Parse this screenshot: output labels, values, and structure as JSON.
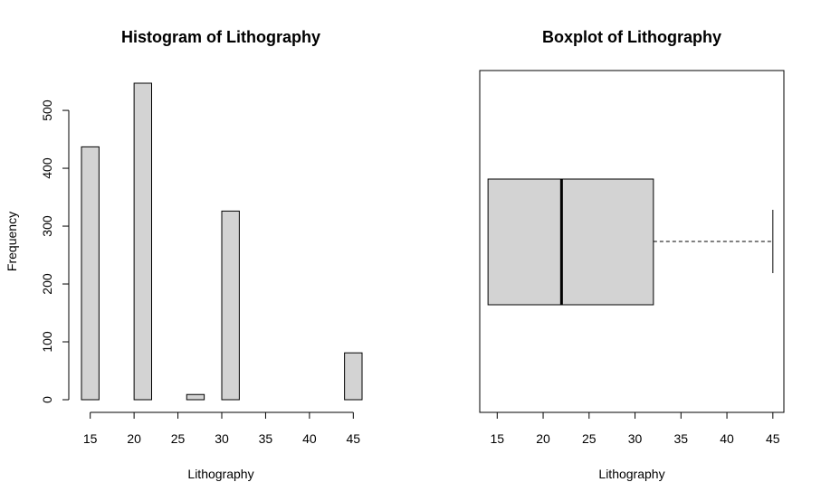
{
  "chart_data": [
    {
      "type": "histogram",
      "title": "Histogram of Lithography",
      "xlabel": "Lithography",
      "ylabel": "Frequency",
      "bins": [
        {
          "start": 14,
          "end": 16,
          "count": 437
        },
        {
          "start": 16,
          "end": 18,
          "count": 0
        },
        {
          "start": 18,
          "end": 20,
          "count": 0
        },
        {
          "start": 20,
          "end": 22,
          "count": 547
        },
        {
          "start": 22,
          "end": 24,
          "count": 0
        },
        {
          "start": 24,
          "end": 26,
          "count": 0
        },
        {
          "start": 26,
          "end": 28,
          "count": 9
        },
        {
          "start": 28,
          "end": 30,
          "count": 0
        },
        {
          "start": 30,
          "end": 32,
          "count": 326
        },
        {
          "start": 32,
          "end": 34,
          "count": 0
        },
        {
          "start": 34,
          "end": 36,
          "count": 0
        },
        {
          "start": 36,
          "end": 38,
          "count": 0
        },
        {
          "start": 38,
          "end": 40,
          "count": 0
        },
        {
          "start": 40,
          "end": 42,
          "count": 0
        },
        {
          "start": 42,
          "end": 44,
          "count": 0
        },
        {
          "start": 44,
          "end": 46,
          "count": 81
        }
      ],
      "xticks": [
        15,
        20,
        25,
        30,
        35,
        40,
        45
      ],
      "yticks": [
        0,
        100,
        200,
        300,
        400,
        500
      ],
      "xlim": [
        14,
        46
      ],
      "ylim": [
        0,
        547
      ],
      "bar_color": "#d3d3d3"
    },
    {
      "type": "boxplot",
      "title": "Boxplot of Lithography",
      "xlabel": "Lithography",
      "orientation": "horizontal",
      "stats": {
        "whisker_low": 14,
        "q1": 14,
        "median": 22,
        "q3": 32,
        "whisker_high": 45
      },
      "xticks": [
        15,
        20,
        25,
        30,
        35,
        40,
        45
      ],
      "xlim": [
        13.1,
        46.2
      ],
      "box_color": "#d3d3d3"
    }
  ]
}
